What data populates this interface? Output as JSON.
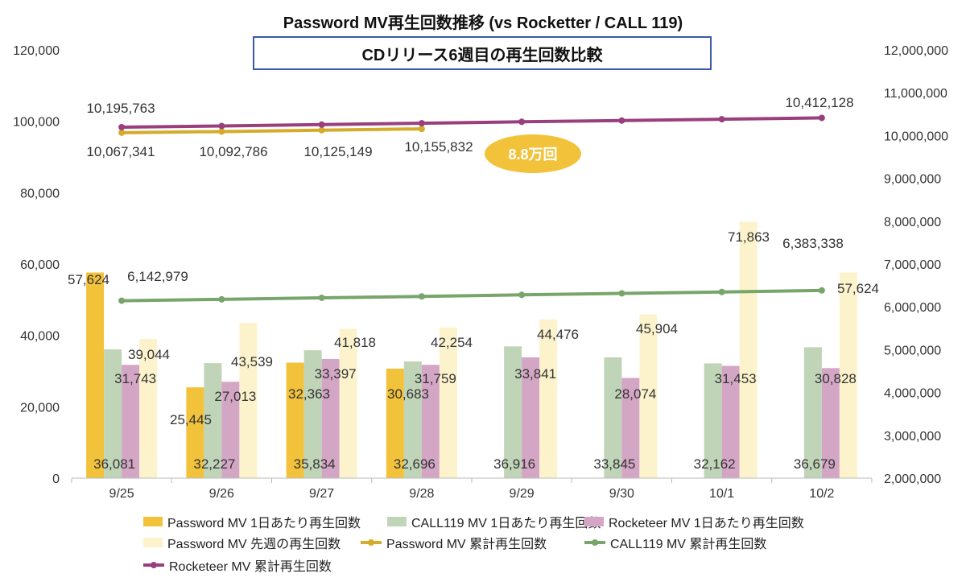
{
  "chart_data": {
    "type": "bar",
    "title": "Password MV再生回数推移 (vs Rocketter / CALL 119)",
    "subtitle": "CDリリース6週目の再生回数比較",
    "categories": [
      "9/25",
      "9/26",
      "9/27",
      "9/28",
      "9/29",
      "9/30",
      "10/1",
      "10/2"
    ],
    "y_left": {
      "ylim": [
        0,
        120000
      ],
      "ticks": [
        "0",
        "20,000",
        "40,000",
        "60,000",
        "80,000",
        "100,000",
        "120,000"
      ]
    },
    "y_right": {
      "ylim": [
        2000000,
        12000000
      ],
      "ticks": [
        "2,000,000",
        "3,000,000",
        "4,000,000",
        "5,000,000",
        "6,000,000",
        "7,000,000",
        "8,000,000",
        "9,000,000",
        "10,000,000",
        "11,000,000",
        "12,000,000"
      ]
    },
    "bar_series": [
      {
        "name": "Password MV 1日あたり再生回数",
        "color": "#f2c23a",
        "values": [
          57624,
          25445,
          32363,
          30683,
          null,
          null,
          null,
          null
        ],
        "labels": [
          "57,624",
          "25,445",
          "32,363",
          "30,683",
          "",
          "",
          "",
          ""
        ]
      },
      {
        "name": "CALL119 MV 1日あたり再生回数",
        "color": "#c0d4b8",
        "values": [
          36081,
          32227,
          35834,
          32696,
          36916,
          33845,
          32162,
          36679
        ],
        "labels": [
          "36,081",
          "32,227",
          "35,834",
          "32,696",
          "36,916",
          "33,845",
          "32,162",
          "36,679"
        ]
      },
      {
        "name": "Rocketeer MV 1日あたり再生回数",
        "color": "#d4a6c6",
        "values": [
          31743,
          27013,
          33397,
          31759,
          33841,
          28074,
          31453,
          30828
        ],
        "labels": [
          "31,743",
          "27,013",
          "33,397",
          "31,759",
          "33,841",
          "28,074",
          "31,453",
          "30,828"
        ]
      },
      {
        "name": "Password MV 先週の再生回数",
        "color": "#fcf3cc",
        "values": [
          39044,
          43539,
          41818,
          42254,
          44476,
          45904,
          71863,
          57624
        ],
        "labels": [
          "39,044",
          "43,539",
          "41,818",
          "42,254",
          "44,476",
          "45,904",
          "71,863",
          "57,624"
        ]
      }
    ],
    "line_series": [
      {
        "name": "Password MV 累計再生回数",
        "color": "#d4ab2a",
        "values": [
          10067341,
          10092786,
          10125149,
          10155832,
          null,
          null,
          null,
          null
        ],
        "labels": [
          "10,067,341",
          "10,092,786",
          "10,125,149",
          "10,155,832",
          "",
          "",
          "",
          ""
        ]
      },
      {
        "name": "CALL119 MV 累計再生回数",
        "color": "#77a56a",
        "values": [
          6142979,
          6175206,
          6211040,
          6243736,
          6280652,
          6314497,
          6346659,
          6383338
        ],
        "labels": [
          "6,142,979",
          "",
          "",
          "",
          "",
          "",
          "",
          "6,383,338"
        ]
      },
      {
        "name": "Rocketeer MV 累計再生回数",
        "color": "#9a3f7e",
        "values": [
          10195763,
          10222776,
          10256173,
          10287932,
          10321773,
          10349847,
          10381300,
          10412128
        ],
        "labels": [
          "10,195,763",
          "",
          "",
          "",
          "",
          "",
          "",
          "10,412,128"
        ]
      }
    ],
    "annotation": {
      "text": "8.8万回",
      "color": "#f2c23a"
    },
    "grid": false,
    "legend_position": "bottom"
  }
}
